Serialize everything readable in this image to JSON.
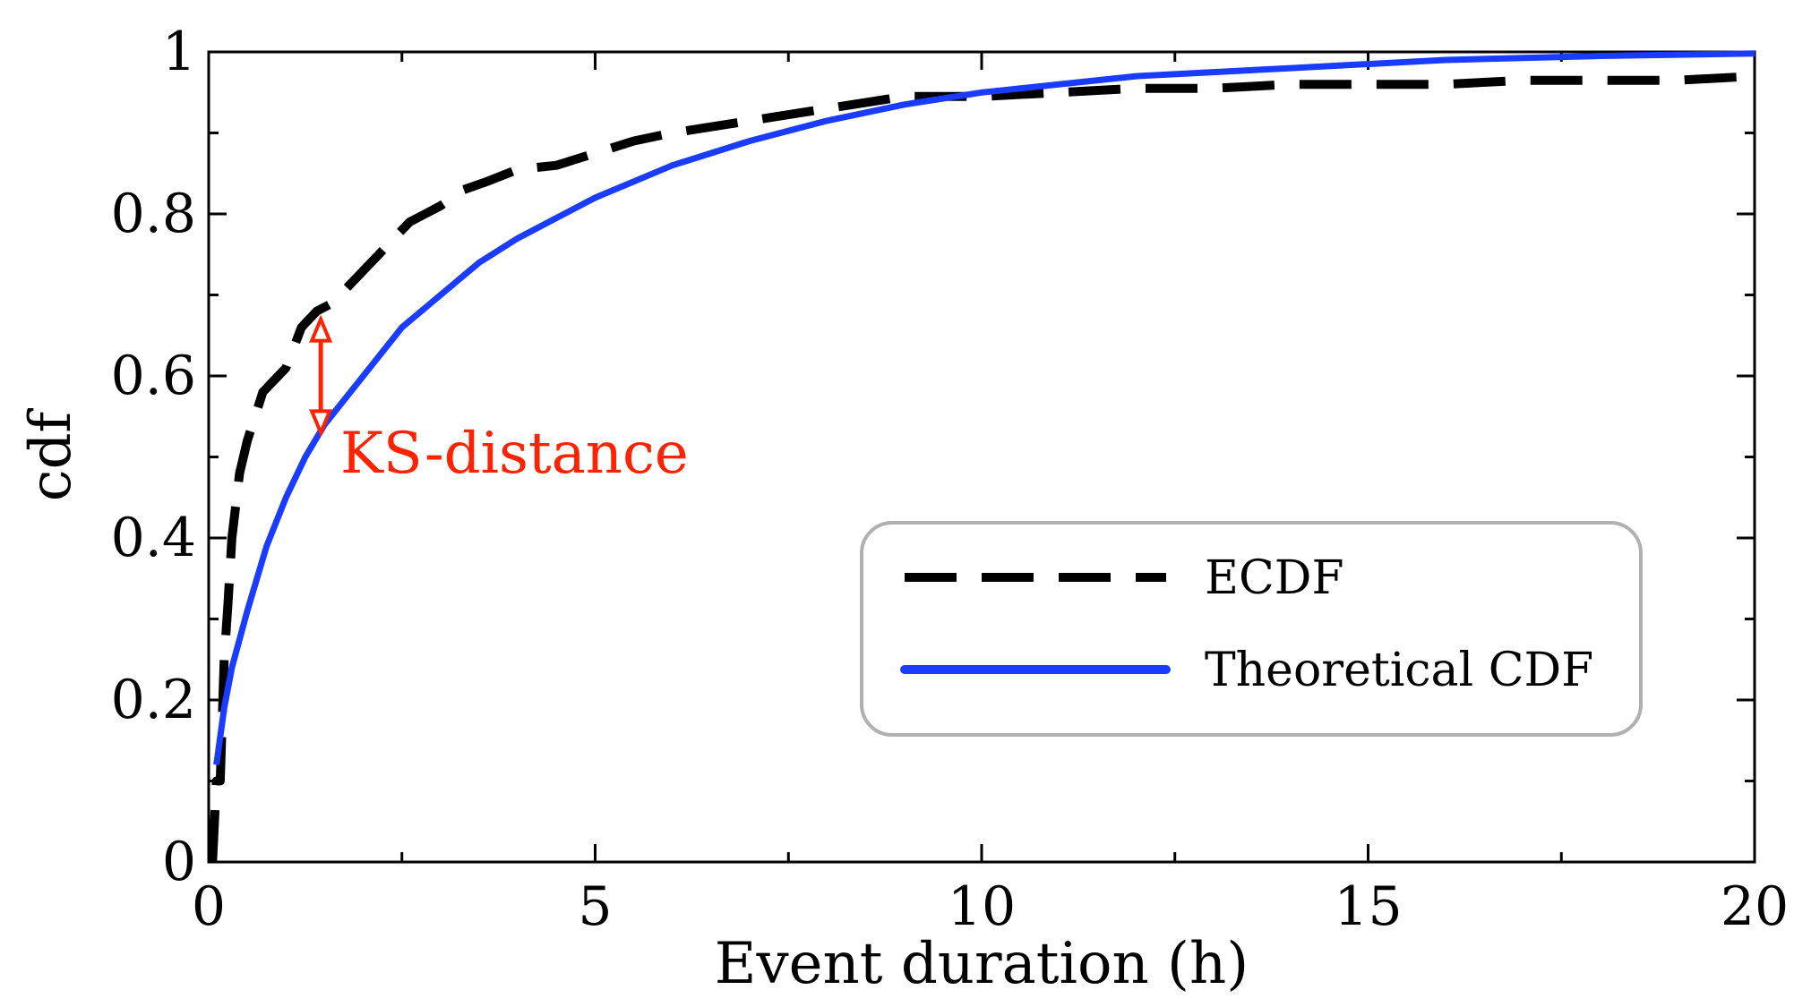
{
  "chart_data": {
    "type": "line",
    "title": "",
    "xlabel": "Event duration (h)",
    "ylabel": "cdf",
    "xlim": [
      0,
      20
    ],
    "ylim": [
      0,
      1
    ],
    "xticks": [
      0,
      5,
      10,
      15,
      20
    ],
    "xtick_labels": [
      "0",
      "5",
      "10",
      "15",
      "20"
    ],
    "yticks": [
      0,
      0.2,
      0.4,
      0.6,
      0.8,
      1
    ],
    "ytick_labels": [
      "0",
      "0.2",
      "0.4",
      "0.6",
      "0.8",
      "1"
    ],
    "grid": false,
    "legend_position": "center-right",
    "series": [
      {
        "name": "ECDF",
        "style": "dashed",
        "color": "#000000",
        "x": [
          0.05,
          0.1,
          0.15,
          0.2,
          0.25,
          0.3,
          0.4,
          0.5,
          0.6,
          0.7,
          0.8,
          0.9,
          1.0,
          1.2,
          1.4,
          1.6,
          1.8,
          2.0,
          2.2,
          2.4,
          2.6,
          2.8,
          3.0,
          3.3,
          3.6,
          4.0,
          4.5,
          5.0,
          5.5,
          6.0,
          7.0,
          8.0,
          9.0,
          10.0,
          11.0,
          12.0,
          13.0,
          14.0,
          15.0,
          16.0,
          17.0,
          18.0,
          19.0,
          20.0
        ],
        "values": [
          0.0,
          0.1,
          0.1,
          0.25,
          0.32,
          0.4,
          0.48,
          0.52,
          0.55,
          0.58,
          0.59,
          0.6,
          0.61,
          0.66,
          0.68,
          0.69,
          0.71,
          0.73,
          0.75,
          0.77,
          0.79,
          0.8,
          0.81,
          0.83,
          0.84,
          0.855,
          0.86,
          0.875,
          0.89,
          0.9,
          0.915,
          0.93,
          0.945,
          0.945,
          0.95,
          0.955,
          0.955,
          0.96,
          0.96,
          0.96,
          0.965,
          0.965,
          0.965,
          0.97
        ]
      },
      {
        "name": "Theoretical CDF",
        "style": "solid",
        "color": "#1a3cff",
        "x": [
          0.1,
          0.2,
          0.3,
          0.5,
          0.75,
          1.0,
          1.25,
          1.5,
          2.0,
          2.5,
          3.0,
          3.5,
          4.0,
          5.0,
          6.0,
          7.0,
          8.0,
          9.0,
          10.0,
          12.0,
          14.0,
          16.0,
          18.0,
          20.0
        ],
        "values": [
          0.12,
          0.19,
          0.24,
          0.31,
          0.39,
          0.45,
          0.5,
          0.54,
          0.6,
          0.66,
          0.7,
          0.74,
          0.77,
          0.82,
          0.86,
          0.89,
          0.915,
          0.935,
          0.95,
          0.97,
          0.98,
          0.99,
          0.995,
          0.998
        ]
      }
    ],
    "annotations": [
      {
        "text": "KS-distance",
        "color": "#ff2200",
        "arrow_x": 1.45,
        "arrow_y_from": 0.53,
        "arrow_y_to": 0.67
      }
    ]
  }
}
